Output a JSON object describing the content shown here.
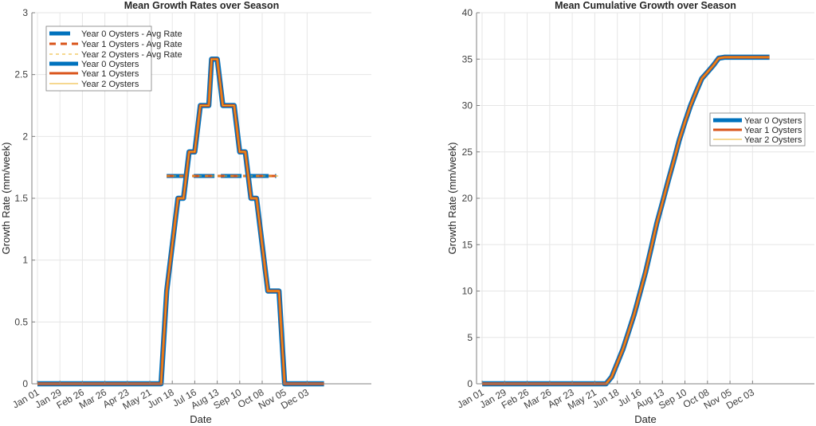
{
  "chart_data": [
    {
      "type": "line",
      "title": "Mean Growth Rates over Season",
      "xlabel": "Date",
      "ylabel": "Growth Rate (mm/week)",
      "ylim": [
        0,
        3
      ],
      "yticks": [
        "0",
        "0.5",
        "1",
        "1.5",
        "2",
        "2.5",
        "3"
      ],
      "xtick_labels": [
        "Jan 01",
        "Jan 29",
        "Feb 26",
        "Mar 26",
        "Apr 23",
        "May 21",
        "Jun 18",
        "Jul 16",
        "Aug 13",
        "Sep 10",
        "Oct 08",
        "Nov 05",
        "Dec 03"
      ],
      "grid": true,
      "legend_position": "upper-left",
      "x_weeks": [
        0,
        22,
        23,
        25,
        26,
        27,
        28,
        29,
        30.5,
        31,
        32,
        33,
        35,
        36,
        37,
        38,
        39,
        41,
        43,
        44,
        51
      ],
      "series": [
        {
          "name": "Year 0 Oysters",
          "color": "#0072BD",
          "values": [
            0,
            0,
            0.75,
            1.5,
            1.5,
            1.875,
            1.875,
            2.25,
            2.25,
            2.625,
            2.625,
            2.25,
            2.25,
            1.875,
            1.875,
            1.5,
            1.5,
            0.75,
            0.75,
            0,
            0
          ]
        },
        {
          "name": "Year 1 Oysters",
          "color": "#D95319",
          "values": [
            0,
            0,
            0.75,
            1.5,
            1.5,
            1.875,
            1.875,
            2.25,
            2.25,
            2.625,
            2.625,
            2.25,
            2.25,
            1.875,
            1.875,
            1.5,
            1.5,
            0.75,
            0.75,
            0,
            0
          ]
        },
        {
          "name": "Year 2 Oysters",
          "color": "#EDB120",
          "values": [
            0,
            0,
            0.75,
            1.5,
            1.5,
            1.875,
            1.875,
            2.25,
            2.25,
            2.625,
            2.625,
            2.25,
            2.25,
            1.875,
            1.875,
            1.5,
            1.5,
            0.75,
            0.75,
            0,
            0
          ]
        },
        {
          "name": "Year 0 Oysters - Avg Rate",
          "color": "#0072BD",
          "style": "dashed",
          "x_range_weeks": [
            23,
            42.5
          ],
          "value": 1.68
        },
        {
          "name": "Year 1 Oysters - Avg Rate",
          "color": "#D95319",
          "style": "dashed",
          "x_range_weeks": [
            23,
            42.5
          ],
          "value": 1.68
        },
        {
          "name": "Year 2 Oysters - Avg Rate",
          "color": "#EDB120",
          "style": "dashed",
          "x_range_weeks": [
            23,
            43
          ],
          "value": 1.68
        }
      ],
      "legend": [
        "Year 0 Oysters - Avg Rate",
        "Year 1 Oysters - Avg Rate",
        "Year 2 Oysters - Avg Rate",
        "Year 0 Oysters",
        "Year 1 Oysters",
        "Year 2 Oysters"
      ]
    },
    {
      "type": "line",
      "title": "Mean Cumulative Growth over Season",
      "xlabel": "Date",
      "ylabel": "Growth Rate (mm/week)",
      "ylim": [
        0,
        40
      ],
      "yticks": [
        "0",
        "5",
        "10",
        "15",
        "20",
        "25",
        "30",
        "35",
        "40"
      ],
      "xtick_labels": [
        "Jan 01",
        "Jan 29",
        "Feb 26",
        "Mar 26",
        "Apr 23",
        "May 21",
        "Jun 18",
        "Jul 16",
        "Aug 13",
        "Sep 10",
        "Oct 08",
        "Nov 05",
        "Dec 03"
      ],
      "grid": true,
      "legend_position": "right-middle",
      "x_weeks": [
        0,
        22,
        23,
        24,
        25,
        26,
        27,
        28,
        29,
        30,
        31,
        32,
        33,
        34,
        35,
        36,
        37,
        38,
        39,
        40,
        41,
        42,
        43,
        44,
        51
      ],
      "series": [
        {
          "name": "Year 0 Oysters",
          "color": "#0072BD",
          "values": [
            0,
            0,
            0.75,
            2.25,
            3.75,
            5.6,
            7.5,
            9.75,
            12.0,
            14.6,
            17.3,
            19.5,
            21.8,
            24.0,
            26.3,
            28.2,
            30.0,
            31.5,
            32.9,
            33.6,
            34.3,
            35.1,
            35.2,
            35.2,
            35.2
          ]
        },
        {
          "name": "Year 1 Oysters",
          "color": "#D95319",
          "values": [
            0,
            0,
            0.75,
            2.25,
            3.75,
            5.6,
            7.5,
            9.75,
            12.0,
            14.6,
            17.3,
            19.5,
            21.8,
            24.0,
            26.3,
            28.2,
            30.0,
            31.5,
            32.9,
            33.6,
            34.3,
            35.1,
            35.2,
            35.2,
            35.2
          ]
        },
        {
          "name": "Year 2 Oysters",
          "color": "#EDB120",
          "values": [
            0,
            0,
            0.75,
            2.25,
            3.75,
            5.6,
            7.5,
            9.75,
            12.0,
            14.6,
            17.3,
            19.5,
            21.8,
            24.0,
            26.3,
            28.2,
            30.0,
            31.5,
            32.9,
            33.6,
            34.3,
            35.1,
            35.2,
            35.2,
            35.2
          ]
        }
      ],
      "legend": [
        "Year 0 Oysters",
        "Year 1 Oysters",
        "Year 2 Oysters"
      ]
    }
  ],
  "left": {
    "title": "Mean Growth Rates over Season",
    "xlabel": "Date",
    "ylabel": "Growth Rate (mm/week)",
    "legend": [
      "Year 0 Oysters - Avg Rate",
      "Year 1 Oysters - Avg Rate",
      "Year 2 Oysters - Avg Rate",
      "Year 0 Oysters",
      "Year 1 Oysters",
      "Year 2 Oysters"
    ]
  },
  "right": {
    "title": "Mean Cumulative Growth over Season",
    "xlabel": "Date",
    "ylabel": "Growth Rate (mm/week)",
    "legend": [
      "Year 0 Oysters",
      "Year 1 Oysters",
      "Year 2 Oysters"
    ]
  }
}
